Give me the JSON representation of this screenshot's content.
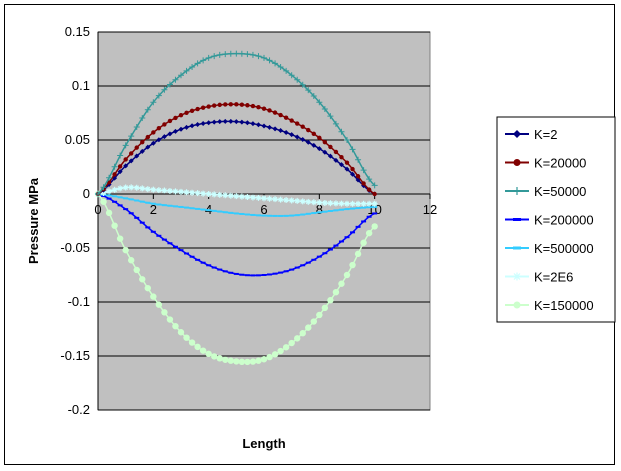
{
  "chart_data": {
    "type": "line",
    "title": "",
    "xlabel": "Length",
    "ylabel": "Pressure MPa",
    "xlim": [
      0,
      12
    ],
    "ylim": [
      -0.2,
      0.15
    ],
    "x_ticks": [
      "0",
      "2",
      "4",
      "6",
      "8",
      "10",
      "12"
    ],
    "y_ticks": [
      "0.15",
      "0.1",
      "0.05",
      "0",
      "-0.05",
      "-0.1",
      "-0.15",
      "-0.2"
    ],
    "grid": "horizontal",
    "legend_position": "right",
    "plot_background": "#c0c0c0",
    "x": [
      0,
      1,
      2,
      3,
      4,
      5,
      6,
      7,
      8,
      9,
      10
    ],
    "series": [
      {
        "name": "K=2",
        "color": "#000080",
        "marker": "diamond",
        "values": [
          0,
          0.026,
          0.047,
          0.06,
          0.066,
          0.067,
          0.063,
          0.055,
          0.042,
          0.023,
          0
        ]
      },
      {
        "name": "K=20000",
        "color": "#800000",
        "marker": "circle",
        "values": [
          0,
          0.032,
          0.057,
          0.073,
          0.081,
          0.083,
          0.079,
          0.068,
          0.052,
          0.029,
          0
        ]
      },
      {
        "name": "K=50000",
        "color": "#339999",
        "marker": "plus",
        "values": [
          0,
          0.045,
          0.085,
          0.11,
          0.126,
          0.13,
          0.126,
          0.11,
          0.085,
          0.05,
          0.008
        ]
      },
      {
        "name": "K=200000",
        "color": "#0000ff",
        "marker": "dash",
        "values": [
          0,
          -0.014,
          -0.035,
          -0.052,
          -0.066,
          -0.074,
          -0.075,
          -0.07,
          -0.058,
          -0.04,
          -0.018
        ]
      },
      {
        "name": "K=500000",
        "color": "#33ccff",
        "marker": "dash",
        "values": [
          0,
          -0.004,
          -0.009,
          -0.012,
          -0.015,
          -0.018,
          -0.02,
          -0.02,
          -0.017,
          -0.014,
          -0.012
        ]
      },
      {
        "name": "K=2E6",
        "color": "#ccffff",
        "marker": "star",
        "values": [
          0,
          0.006,
          0.004,
          0.002,
          0.0,
          -0.002,
          -0.004,
          -0.006,
          -0.008,
          -0.009,
          -0.009
        ]
      },
      {
        "name": "K=150000",
        "color": "#ccffcc",
        "marker": "circle",
        "values": [
          0,
          -0.052,
          -0.095,
          -0.128,
          -0.148,
          -0.155,
          -0.153,
          -0.138,
          -0.112,
          -0.075,
          -0.03
        ]
      }
    ]
  }
}
